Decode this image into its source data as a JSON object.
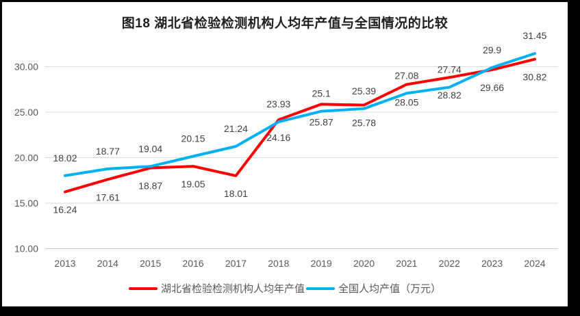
{
  "frame": {
    "background": "#000000",
    "panel_background": "#ffffff"
  },
  "chart_data": {
    "type": "line",
    "title": "图18  湖北省检验检测机构人均年产值与全国情况的比较",
    "categories": [
      "2013",
      "2014",
      "2015",
      "2016",
      "2017",
      "2018",
      "2019",
      "2020",
      "2021",
      "2022",
      "2023",
      "2024"
    ],
    "series": [
      {
        "name": "湖北省检验检测机构人均年产值",
        "color": "#ff0000",
        "values": [
          16.24,
          17.61,
          18.87,
          19.05,
          18.01,
          24.16,
          25.87,
          25.78,
          28.05,
          28.82,
          29.66,
          30.82
        ],
        "labels": [
          "16.24",
          "17.61",
          "18.87",
          "19.05",
          "18.01",
          "24.16",
          "25.87",
          "25.78",
          "28.05",
          "28.82",
          "29.66",
          "30.82"
        ],
        "label_position": "below"
      },
      {
        "name": "全国人均产值（万元）",
        "color": "#00b0f0",
        "values": [
          18.02,
          18.77,
          19.04,
          20.15,
          21.24,
          23.93,
          25.1,
          25.39,
          27.08,
          27.74,
          29.9,
          31.45
        ],
        "labels": [
          "18.02",
          "18.77",
          "19.04",
          "20.15",
          "21.24",
          "23.93",
          "25.1",
          "25.39",
          "27.08",
          "27.74",
          "29.9",
          "31.45"
        ],
        "label_position": "above"
      }
    ],
    "xlabel": "",
    "ylabel": "",
    "ylim": [
      10,
      32.8
    ],
    "y_axis": {
      "ticks": [
        "10.00",
        "15.00",
        "20.00",
        "25.00",
        "30.00"
      ],
      "tick_values": [
        10,
        15,
        20,
        25,
        30
      ]
    },
    "grid": "horizontal",
    "legend_position": "bottom",
    "colors": {
      "gridline": "#d9d9d9",
      "axis_line": "#c9c9c9",
      "axis_label": "#595959",
      "data_label": "#404040",
      "title": "#1f1f1f",
      "legend_text": "#595959"
    }
  }
}
